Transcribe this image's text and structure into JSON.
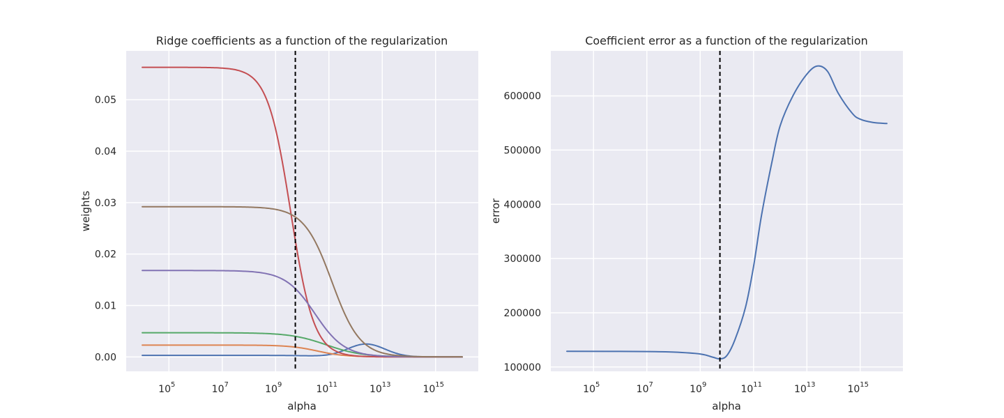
{
  "chart_data": [
    {
      "type": "line",
      "title": "Ridge coefficients as a function of the regularization",
      "xlabel": "alpha",
      "ylabel": "weights",
      "xscale": "log",
      "xlim": [
        2500.0,
        4e+16
      ],
      "ylim": [
        -0.0028,
        0.0595
      ],
      "x_ticks": [
        {
          "base": "10",
          "exp": "5",
          "value": 100000.0
        },
        {
          "base": "10",
          "exp": "7",
          "value": 10000000.0
        },
        {
          "base": "10",
          "exp": "9",
          "value": 1000000000.0
        },
        {
          "base": "10",
          "exp": "11",
          "value": 100000000000.0
        },
        {
          "base": "10",
          "exp": "13",
          "value": 10000000000000.0
        },
        {
          "base": "10",
          "exp": "15",
          "value": 1000000000000000.0
        }
      ],
      "y_ticks": [
        {
          "label": "0.00",
          "value": 0.0
        },
        {
          "label": "0.01",
          "value": 0.01
        },
        {
          "label": "0.02",
          "value": 0.02
        },
        {
          "label": "0.03",
          "value": 0.03
        },
        {
          "label": "0.04",
          "value": 0.04
        },
        {
          "label": "0.05",
          "value": 0.05
        }
      ],
      "vline_x": 5500000000.0,
      "grid": true,
      "x_range": [
        10000.0,
        1e+16
      ],
      "series": [
        {
          "color": "#4c72b0",
          "top": 0.0003,
          "bottom": 0.0,
          "center": 37000000000.0,
          "k": 1.9,
          "bump_amp": 0.0025,
          "bump_center": 2500000000000.0,
          "bump_width": 1.0
        },
        {
          "color": "#dd8452",
          "top": 0.0023,
          "bottom": 0.0,
          "center": 37000000000.0,
          "k": 1.9,
          "bump_amp": 0.0,
          "bump_center": 1000000000000.0,
          "bump_width": 1.0
        },
        {
          "color": "#55a868",
          "top": 0.0047,
          "bottom": 0.0,
          "center": 80000000000.0,
          "k": 1.5,
          "bump_amp": 0.0,
          "bump_center": 1000000000000.0,
          "bump_width": 1.0
        },
        {
          "color": "#c44e52",
          "top": 0.0563,
          "bottom": 0.0,
          "center": 3700000000.0,
          "k": 2.3,
          "bump_amp": 0.0,
          "bump_center": 1000000000000.0,
          "bump_width": 1.0
        },
        {
          "color": "#8172b3",
          "top": 0.0168,
          "bottom": 0.0,
          "center": 30000000000.0,
          "k": 1.8,
          "bump_amp": 0.0,
          "bump_center": 1000000000000.0,
          "bump_width": 1.0
        },
        {
          "color": "#937860",
          "top": 0.0292,
          "bottom": 0.0,
          "center": 130000000000.0,
          "k": 1.9,
          "bump_amp": 0.0,
          "bump_center": 1000000000000.0,
          "bump_width": 1.0
        }
      ]
    },
    {
      "type": "line",
      "title": "Coefficient error as a function of the regularization",
      "xlabel": "alpha",
      "ylabel": "error",
      "xscale": "log",
      "xlim": [
        2500.0,
        4e+16
      ],
      "ylim": [
        92000,
        683000
      ],
      "x_ticks": [
        {
          "base": "10",
          "exp": "5",
          "value": 100000.0
        },
        {
          "base": "10",
          "exp": "7",
          "value": 10000000.0
        },
        {
          "base": "10",
          "exp": "9",
          "value": 1000000000.0
        },
        {
          "base": "10",
          "exp": "11",
          "value": 100000000000.0
        },
        {
          "base": "10",
          "exp": "13",
          "value": 10000000000000.0
        },
        {
          "base": "10",
          "exp": "15",
          "value": 1000000000000000.0
        }
      ],
      "y_ticks": [
        {
          "label": "100000",
          "value": 100000
        },
        {
          "label": "200000",
          "value": 200000
        },
        {
          "label": "300000",
          "value": 300000
        },
        {
          "label": "400000",
          "value": 400000
        },
        {
          "label": "500000",
          "value": 500000
        },
        {
          "label": "600000",
          "value": 600000
        }
      ],
      "vline_x": 5500000000.0,
      "grid": true,
      "series": [
        {
          "color": "#4c72b0",
          "x": [
            10000.0,
            10000000.0,
            100000000.0,
            1000000000.0,
            3000000000.0,
            5500000000.0,
            10000000000.0,
            20000000000.0,
            50000000000.0,
            100000000000.0,
            200000000000.0,
            500000000000.0,
            1000000000000.0,
            3000000000000.0,
            10000000000000.0,
            25000000000000.0,
            60000000000000.0,
            150000000000000.0,
            500000000000000.0,
            1000000000000000.0,
            3000000000000000.0,
            1e+16
          ],
          "y": [
            129000,
            128500,
            127500,
            124000,
            118000,
            115000,
            121000,
            150000,
            210000,
            285000,
            380000,
            480000,
            545000,
            600000,
            640000,
            655000,
            645000,
            605000,
            568000,
            557000,
            551000,
            549000
          ]
        }
      ]
    }
  ]
}
